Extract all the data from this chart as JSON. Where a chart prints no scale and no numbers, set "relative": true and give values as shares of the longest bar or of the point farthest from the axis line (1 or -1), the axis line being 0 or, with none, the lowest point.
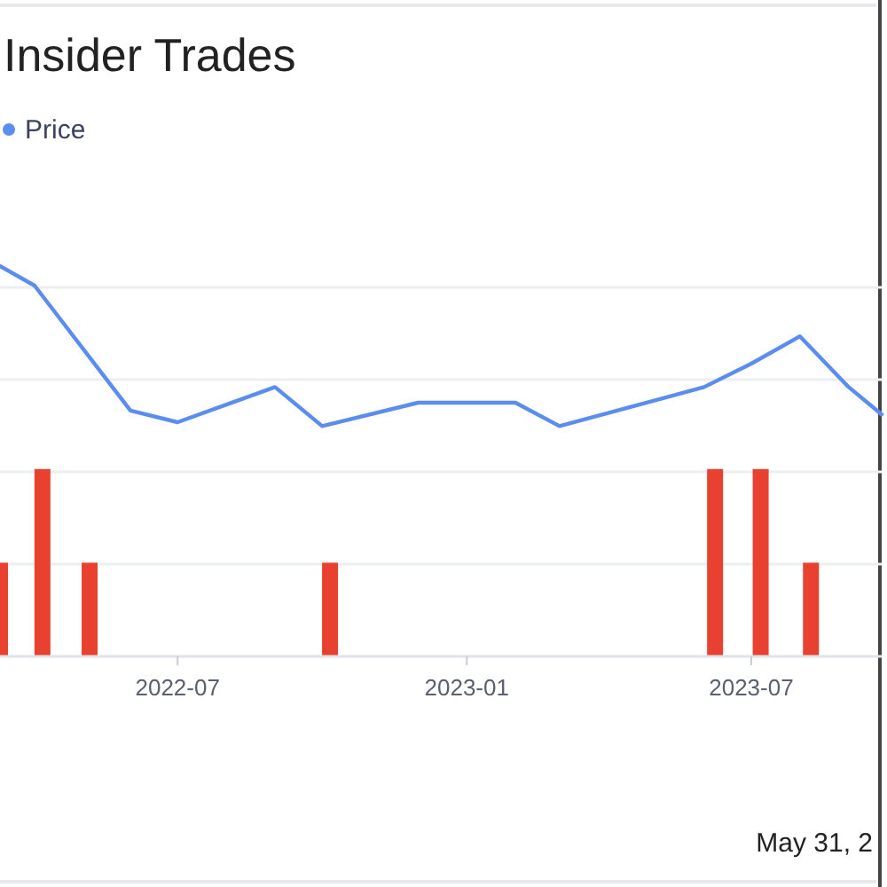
{
  "chart_data": {
    "type": "line",
    "title": "Insider Trades",
    "relative": true,
    "xlim": [
      "2022-03-10",
      "2023-09-22"
    ],
    "xticks": [
      {
        "value": "2022-07-01",
        "label": "2022-07"
      },
      {
        "value": "2023-01-01",
        "label": "2023-01"
      },
      {
        "value": "2023-07-01",
        "label": "2023-07"
      }
    ],
    "grid": "y",
    "legend": "top left",
    "marker": "none",
    "annotations": [
      "May 31, 2"
    ],
    "series": [
      {
        "name": "Price",
        "color": "#5b8def",
        "x": [
          "2022-03-10",
          "2022-04-01",
          "2022-06-01",
          "2022-07-01",
          "2022-09-01",
          "2022-10-01",
          "2022-12-01",
          "2023-02-01",
          "2023-03-01",
          "2023-06-01",
          "2023-07-01",
          "2023-08-01",
          "2023-09-01",
          "2023-09-22"
        ],
        "values": [
          1.0,
          0.95,
          0.63,
          0.6,
          0.69,
          0.59,
          0.65,
          0.65,
          0.59,
          0.69,
          0.75,
          0.82,
          0.69,
          0.62
        ]
      },
      {
        "type": "bar",
        "color": "#e8412f",
        "x": [
          "2022-03-10",
          "2022-04-06",
          "2022-05-06",
          "2022-10-06",
          "2023-06-08",
          "2023-07-07",
          "2023-08-08"
        ],
        "values": [
          0.24,
          0.48,
          0.24,
          0.24,
          0.48,
          0.48,
          0.24
        ]
      }
    ]
  }
}
